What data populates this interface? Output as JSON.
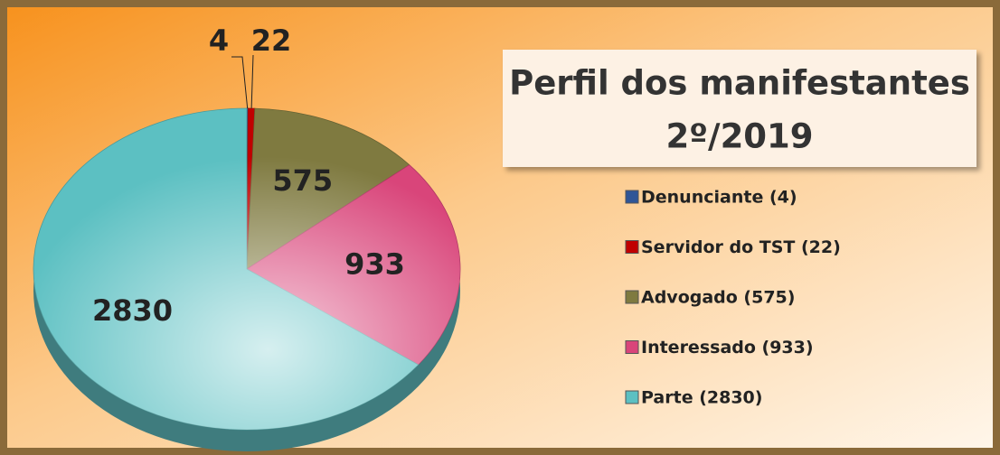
{
  "chart_data": {
    "type": "pie",
    "title": "Perfil dos manifestantes",
    "subtitle": "2º/2019",
    "categories": [
      "Denunciante (4)",
      "Servidor do TST (22)",
      "Advogado (575)",
      "Interessado (933)",
      "Parte (2830)"
    ],
    "values": [
      4,
      22,
      575,
      933,
      2830
    ],
    "colors": [
      "#2f5597",
      "#c00000",
      "#7f7a40",
      "#d9457a",
      "#5cc0c2"
    ],
    "legend": "right"
  }
}
